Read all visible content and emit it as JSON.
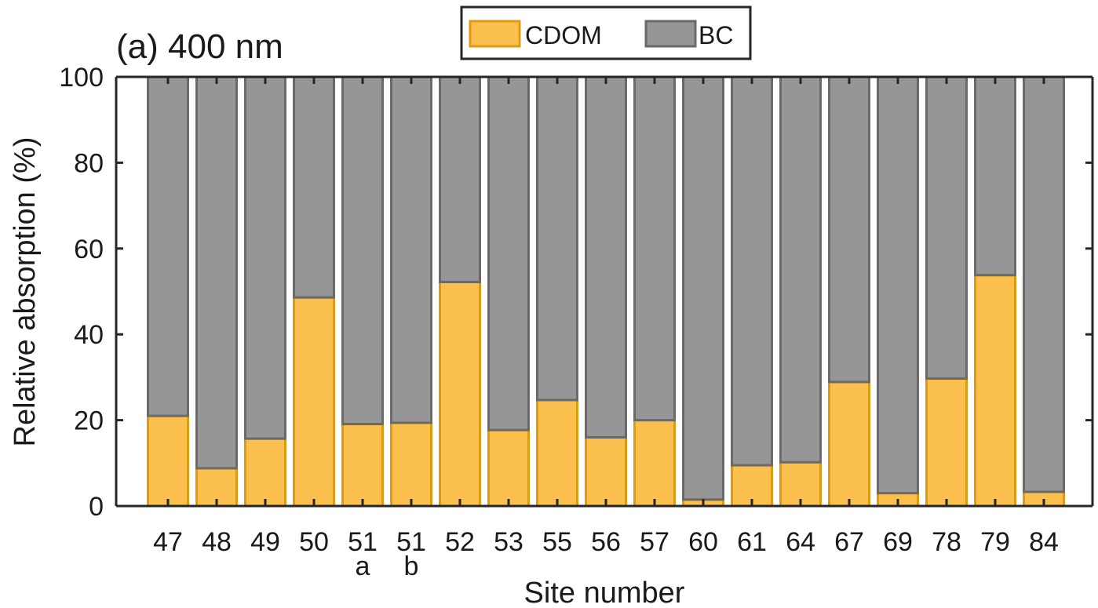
{
  "chart_data": {
    "type": "bar",
    "stacked": true,
    "panel_label": "(a) 400 nm",
    "xlabel": "Site number",
    "ylabel": "Relative absorption (%)",
    "ylim": [
      0,
      100
    ],
    "yticks": [
      "0",
      "20",
      "40",
      "60",
      "80",
      "100"
    ],
    "grid": false,
    "legend_position": "top-center",
    "categories": [
      "47",
      "48",
      "49",
      "50",
      "51",
      "51",
      "52",
      "53",
      "55",
      "56",
      "57",
      "60",
      "61",
      "64",
      "67",
      "69",
      "78",
      "79",
      "84"
    ],
    "category_sublabels": [
      "",
      "",
      "",
      "",
      "a",
      "b",
      "",
      "",
      "",
      "",
      "",
      "",
      "",
      "",
      "",
      "",
      "",
      "",
      ""
    ],
    "series": [
      {
        "name": "CDOM",
        "color": "#FCC04E",
        "edge_color": "#E09A10",
        "values": [
          21,
          8.8,
          15.7,
          48.6,
          19.1,
          19.4,
          52.2,
          17.7,
          24.7,
          16,
          20,
          1.5,
          9.5,
          10.2,
          28.9,
          3,
          29.7,
          53.8,
          3.3
        ]
      },
      {
        "name": "BC",
        "color": "#969696",
        "edge_color": "#6A6A6A",
        "values": [
          79,
          91.2,
          84.3,
          51.4,
          80.9,
          80.6,
          47.8,
          82.3,
          75.3,
          84,
          80,
          98.5,
          90.5,
          89.8,
          71.1,
          97,
          70.3,
          46.2,
          96.7
        ]
      }
    ]
  }
}
